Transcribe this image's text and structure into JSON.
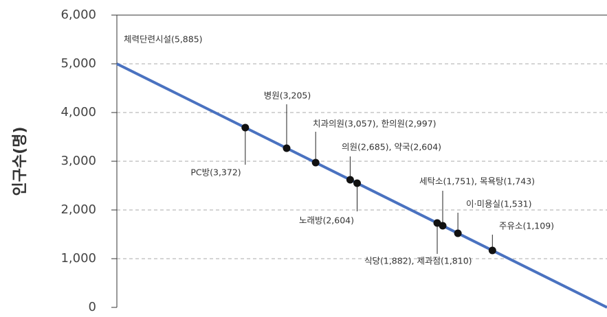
{
  "chart_data": {
    "type": "line",
    "y_label": "인구수(명)",
    "ylim": [
      0,
      6000
    ],
    "yticks": [
      {
        "value": 0,
        "label": "0"
      },
      {
        "value": 1000,
        "label": "1,000"
      },
      {
        "value": 2000,
        "label": "2,000"
      },
      {
        "value": 3000,
        "label": "3,000"
      },
      {
        "value": 4000,
        "label": "4,000"
      },
      {
        "value": 5000,
        "label": "5,000"
      },
      {
        "value": 6000,
        "label": "6,000"
      }
    ],
    "grid": true,
    "line": {
      "color": "#4a72c0",
      "values": [
        5000,
        0
      ]
    },
    "points": {
      "color": "#111111",
      "values": [
        3690,
        3268,
        2972,
        2620,
        2549,
        1732,
        1676,
        1521,
        1169
      ]
    },
    "annotations": [
      "체력단련시설(5,885)",
      "병원(3,205)",
      "치과의원(3,057), 한의원(2,997)",
      "의원(2,685), 약국(2,604)",
      "PC방(3,372)",
      "노래방(2,604)",
      "세탁소(1,751), 목욕탕(1,743)",
      "이·미용실(1,531)",
      "주유소(1,109)",
      "식당(1,882), 제과점(1,810)"
    ]
  }
}
